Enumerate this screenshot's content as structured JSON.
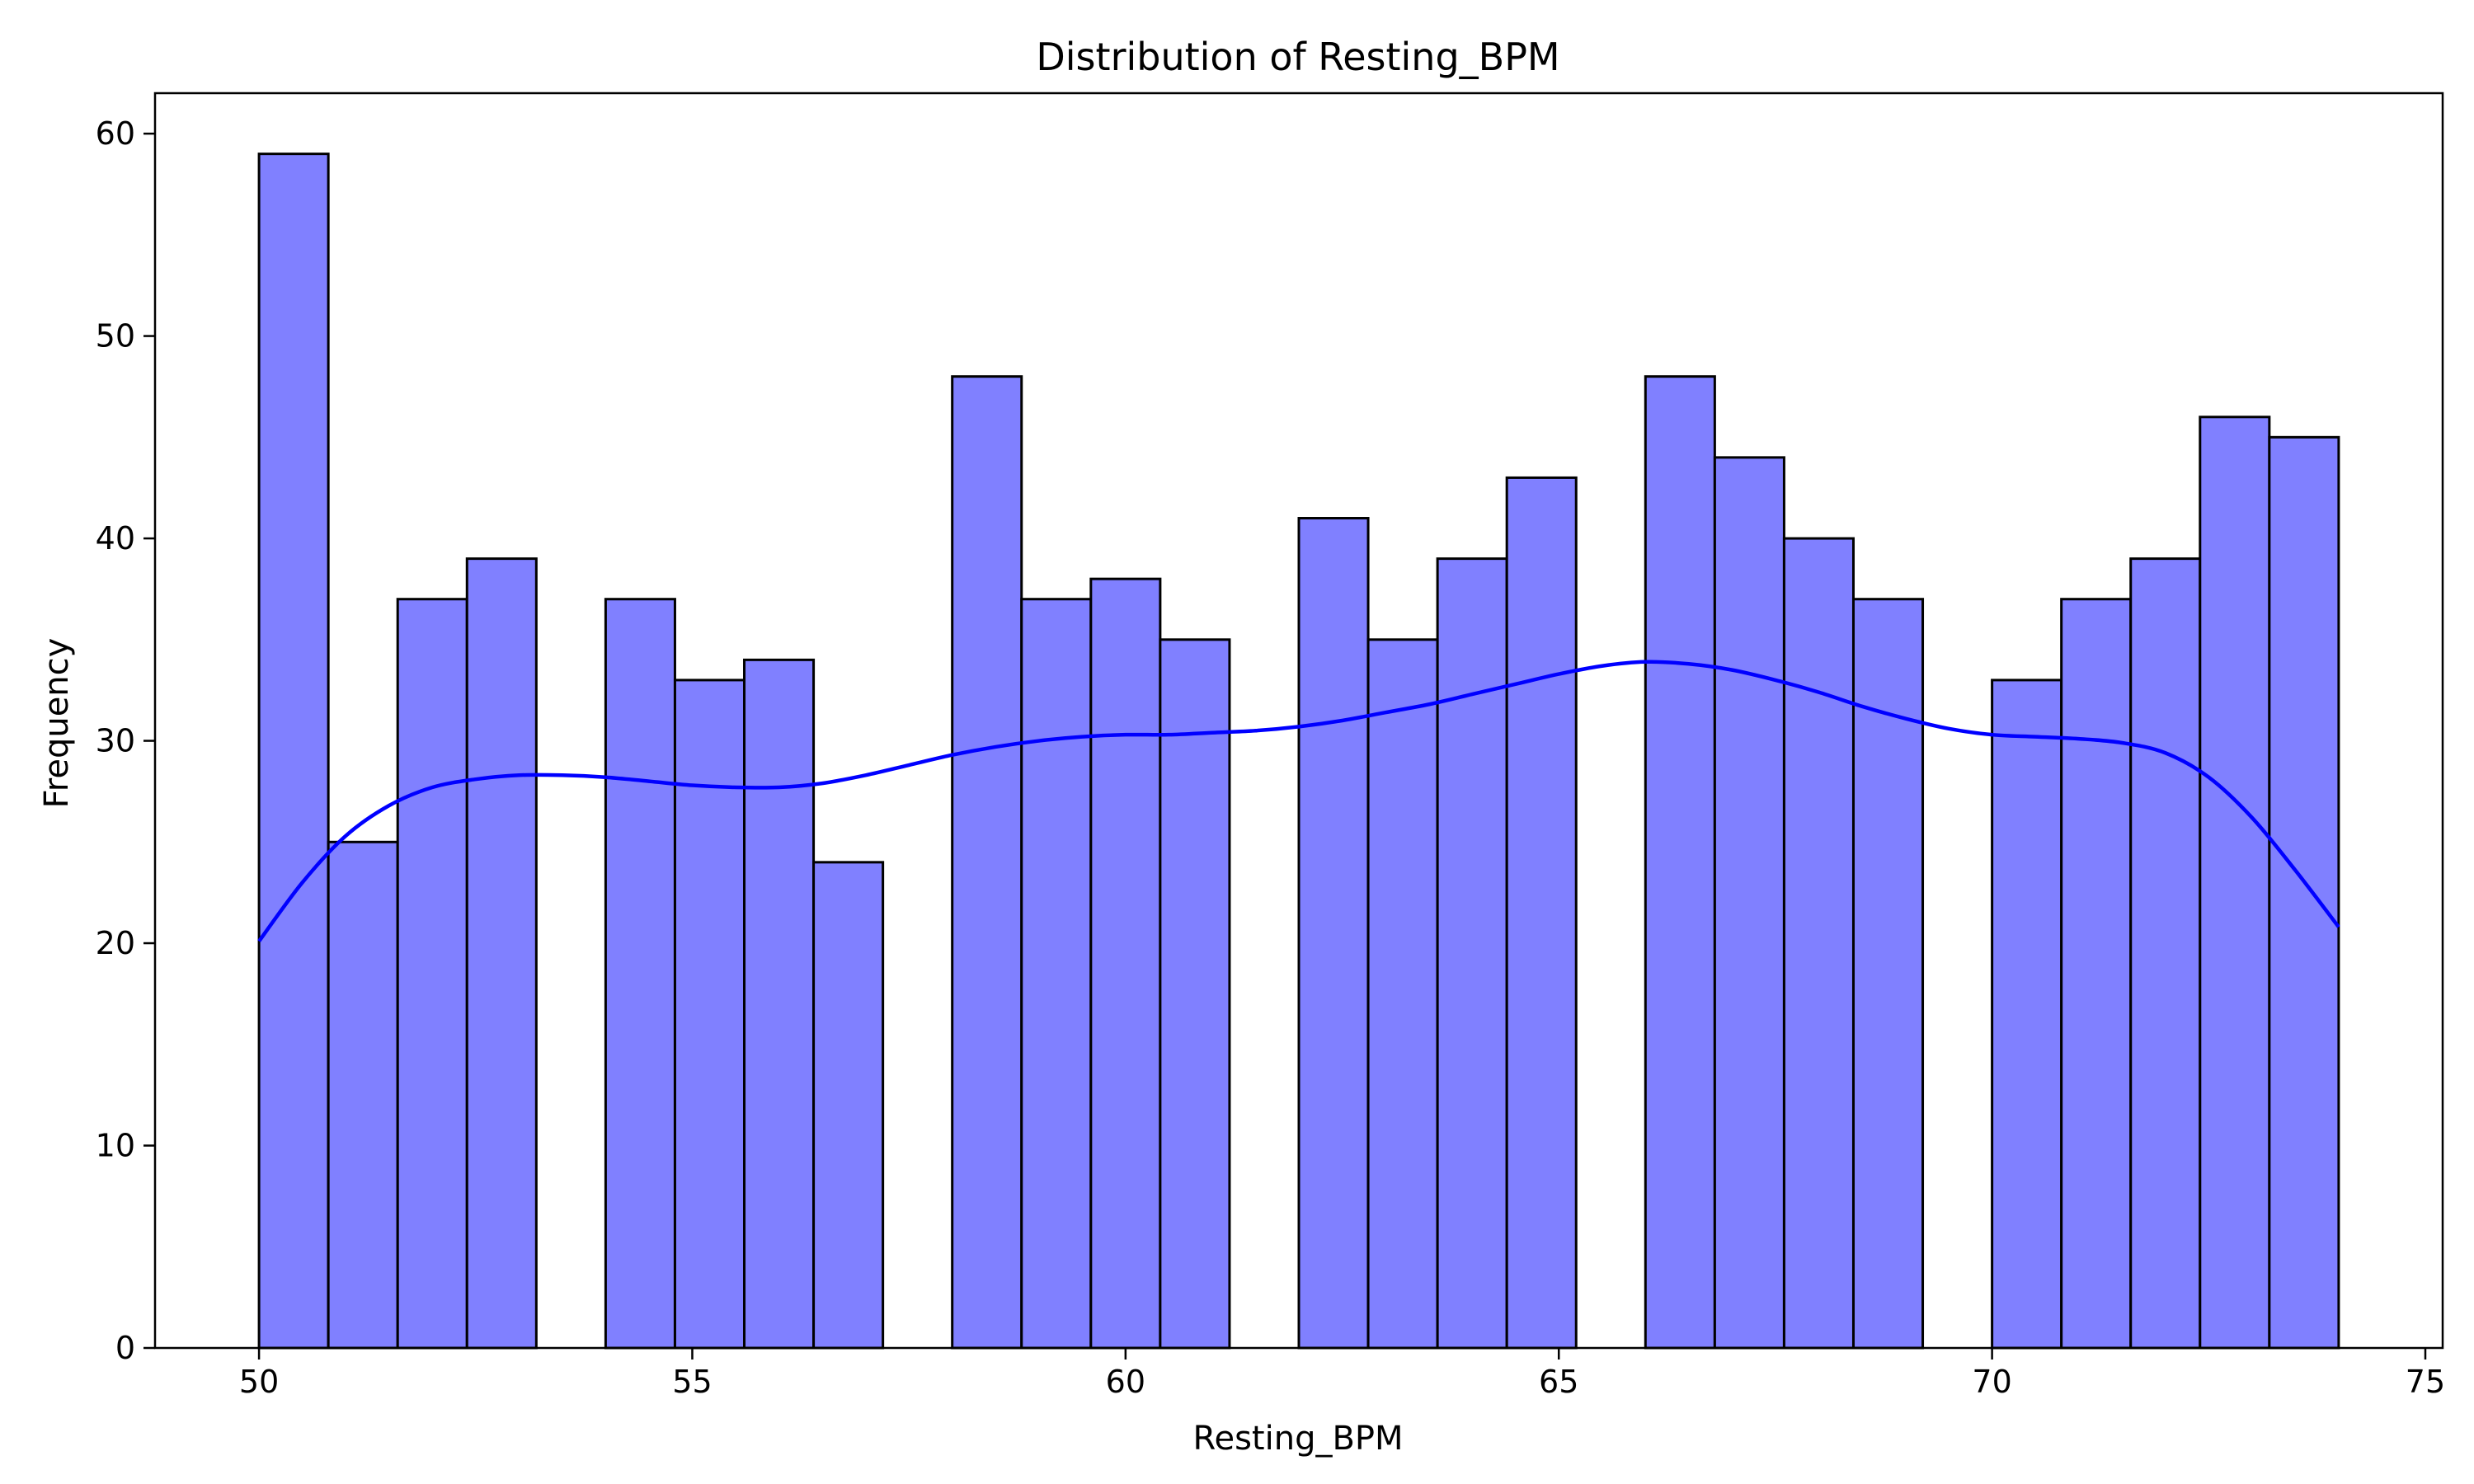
{
  "chart_data": {
    "type": "bar",
    "subtype": "histogram",
    "title": "Distribution of Resting_BPM",
    "xlabel": "Resting_BPM",
    "ylabel": "Frequency",
    "xlim": [
      48.8,
      75.2
    ],
    "ylim": [
      0,
      62
    ],
    "x_ticks": [
      50,
      55,
      60,
      65,
      70,
      75
    ],
    "y_ticks": [
      0,
      10,
      20,
      30,
      40,
      50,
      60
    ],
    "grid": false,
    "legend": "none",
    "bin_width": 0.8,
    "bins": [
      {
        "start": 50.0,
        "end": 50.8,
        "count": 59
      },
      {
        "start": 50.8,
        "end": 51.6,
        "count": 25
      },
      {
        "start": 51.6,
        "end": 52.4,
        "count": 37
      },
      {
        "start": 52.4,
        "end": 53.2,
        "count": 39
      },
      {
        "start": 53.2,
        "end": 54.0,
        "count": 0
      },
      {
        "start": 54.0,
        "end": 54.8,
        "count": 37
      },
      {
        "start": 54.8,
        "end": 55.6,
        "count": 33
      },
      {
        "start": 55.6,
        "end": 56.4,
        "count": 34
      },
      {
        "start": 56.4,
        "end": 57.2,
        "count": 24
      },
      {
        "start": 57.2,
        "end": 58.0,
        "count": 0
      },
      {
        "start": 58.0,
        "end": 58.8,
        "count": 48
      },
      {
        "start": 58.8,
        "end": 59.6,
        "count": 37
      },
      {
        "start": 59.6,
        "end": 60.4,
        "count": 38
      },
      {
        "start": 60.4,
        "end": 61.2,
        "count": 35
      },
      {
        "start": 61.2,
        "end": 62.0,
        "count": 0
      },
      {
        "start": 62.0,
        "end": 62.8,
        "count": 41
      },
      {
        "start": 62.8,
        "end": 63.6,
        "count": 35
      },
      {
        "start": 63.6,
        "end": 64.4,
        "count": 39
      },
      {
        "start": 64.4,
        "end": 65.2,
        "count": 43
      },
      {
        "start": 65.2,
        "end": 66.0,
        "count": 0
      },
      {
        "start": 66.0,
        "end": 66.8,
        "count": 48
      },
      {
        "start": 66.8,
        "end": 67.6,
        "count": 44
      },
      {
        "start": 67.6,
        "end": 68.4,
        "count": 40
      },
      {
        "start": 68.4,
        "end": 69.2,
        "count": 37
      },
      {
        "start": 69.2,
        "end": 70.0,
        "count": 0
      },
      {
        "start": 70.0,
        "end": 70.8,
        "count": 33
      },
      {
        "start": 70.8,
        "end": 71.6,
        "count": 37
      },
      {
        "start": 71.6,
        "end": 72.4,
        "count": 39
      },
      {
        "start": 72.4,
        "end": 73.2,
        "count": 46
      },
      {
        "start": 73.2,
        "end": 74.0,
        "count": 45
      }
    ],
    "kde": {
      "x": [
        50,
        50.5,
        51,
        51.5,
        52,
        52.5,
        53,
        53.5,
        54,
        54.5,
        55,
        55.5,
        56,
        56.5,
        57,
        57.5,
        58,
        58.5,
        59,
        59.5,
        60,
        60.5,
        61,
        61.5,
        62,
        62.5,
        63,
        63.5,
        64,
        64.5,
        65,
        65.5,
        66,
        66.5,
        67,
        67.5,
        68,
        68.5,
        69,
        69.5,
        70,
        70.5,
        71,
        71.5,
        72,
        72.5,
        73,
        73.5,
        74
      ],
      "y": [
        20.1,
        23.0,
        25.3,
        26.8,
        27.7,
        28.1,
        28.3,
        28.3,
        28.2,
        28.0,
        27.8,
        27.7,
        27.7,
        27.9,
        28.3,
        28.8,
        29.3,
        29.7,
        30.0,
        30.2,
        30.3,
        30.3,
        30.4,
        30.5,
        30.7,
        31.0,
        31.4,
        31.8,
        32.3,
        32.8,
        33.3,
        33.7,
        33.9,
        33.8,
        33.5,
        33.0,
        32.4,
        31.7,
        31.1,
        30.6,
        30.3,
        30.2,
        30.1,
        29.9,
        29.4,
        28.2,
        26.2,
        23.6,
        20.8
      ]
    },
    "colors": {
      "bar_fill": "#8080ff",
      "bar_edge": "#000000",
      "kde_line": "#0000ff"
    }
  }
}
